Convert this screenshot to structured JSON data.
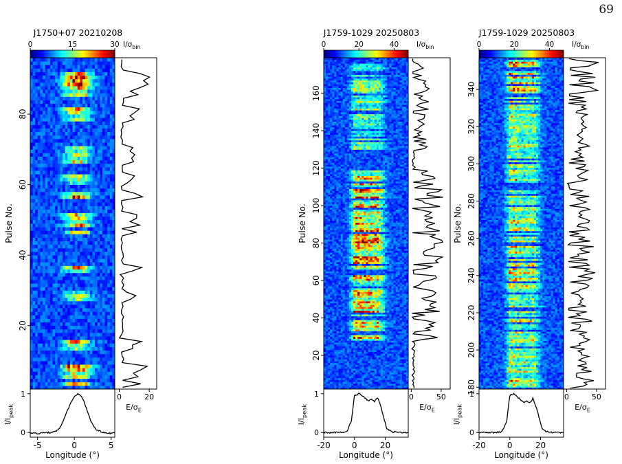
{
  "page_number": "69",
  "chart_data": [
    {
      "type": "heatmap",
      "title": "J1750+07  20210208",
      "colorbar": {
        "label": "I/σ_bin",
        "label_main": "I/σ",
        "label_sub": "bin",
        "ticks": [
          0,
          15,
          30
        ],
        "range": [
          0,
          30
        ],
        "colormap": "jet"
      },
      "pulse_axis": {
        "label": "Pulse No.",
        "range": [
          2,
          96
        ],
        "ticks": [
          20,
          40,
          60,
          80
        ]
      },
      "longitude_axis": {
        "label": "Longitude (°)",
        "range": [
          -6,
          5.5
        ],
        "ticks": [
          -5,
          0,
          5
        ]
      },
      "energy_axis": {
        "label": "E/σ_E",
        "label_main": "E/σ",
        "label_sub": "E",
        "range": [
          -3,
          25
        ],
        "ticks": [
          0,
          20
        ]
      },
      "profile_axis": {
        "label": "I/I_peak",
        "label_main": "I/I",
        "label_sub": "peak",
        "range": [
          -0.12,
          1.12
        ],
        "ticks": [
          0,
          1
        ]
      },
      "emission_bursts": [
        {
          "pulses": [
            3,
            9
          ],
          "intensity": 24
        },
        {
          "pulses": [
            13,
            16
          ],
          "intensity": 15
        },
        {
          "pulses": [
            27,
            29
          ],
          "intensity": 10
        },
        {
          "pulses": [
            35,
            36
          ],
          "intensity": 14
        },
        {
          "pulses": [
            46,
            51
          ],
          "intensity": 12
        },
        {
          "pulses": [
            56,
            57
          ],
          "intensity": 15
        },
        {
          "pulses": [
            60,
            62
          ],
          "intensity": 12
        },
        {
          "pulses": [
            66,
            70
          ],
          "intensity": 14
        },
        {
          "pulses": [
            77,
            81
          ],
          "intensity": 13
        },
        {
          "pulses": [
            85,
            91
          ],
          "intensity": 22
        }
      ],
      "integrated_profile": {
        "longitude": [
          -6,
          -5,
          -4,
          -3,
          -2.5,
          -2,
          -1.5,
          -1,
          -0.5,
          0,
          0.5,
          1,
          1.5,
          2,
          2.5,
          3,
          4,
          5,
          5.5
        ],
        "intensity": [
          0.0,
          -0.03,
          0.0,
          0.0,
          0.03,
          0.12,
          0.3,
          0.55,
          0.75,
          0.92,
          1.0,
          0.93,
          0.7,
          0.42,
          0.2,
          0.07,
          0.0,
          -0.02,
          0.0
        ]
      }
    },
    {
      "type": "heatmap",
      "title": "J1759-1029  20250803",
      "colorbar": {
        "label": "I/σ_bin",
        "label_main": "I/σ",
        "label_sub": "bin",
        "ticks": [
          0,
          20,
          40
        ],
        "range": [
          0,
          48
        ],
        "colormap": "jet"
      },
      "pulse_axis": {
        "label": "Pulse No.",
        "range": [
          2,
          179
        ],
        "ticks": [
          20,
          40,
          60,
          80,
          100,
          120,
          140,
          160
        ]
      },
      "longitude_axis": {
        "label": "Longitude (°)",
        "range": [
          -20,
          35
        ],
        "ticks": [
          -20,
          0,
          20
        ]
      },
      "energy_axis": {
        "label": "E/σ_E",
        "label_main": "E/σ",
        "label_sub": "E",
        "range": [
          -5,
          65
        ],
        "ticks": [
          0,
          50
        ]
      },
      "profile_axis": {
        "label": "I/I_peak",
        "label_main": "I/I",
        "label_sub": "peak",
        "range": [
          -0.12,
          1.12
        ],
        "ticks": [
          0,
          1
        ]
      },
      "emission_bursts": [
        {
          "pulses": [
            26,
            62
          ],
          "intensity": 22
        },
        {
          "pulses": [
            66,
            118
          ],
          "intensity": 25
        },
        {
          "pulses": [
            130,
            148
          ],
          "intensity": 12
        },
        {
          "pulses": [
            151,
            175
          ],
          "intensity": 15
        }
      ],
      "integrated_profile": {
        "longitude": [
          -20,
          -10,
          -5,
          -2,
          0,
          3,
          6,
          9,
          11,
          13,
          15,
          17,
          19,
          21,
          24,
          30,
          35
        ],
        "intensity": [
          0.0,
          0.0,
          0.02,
          0.3,
          0.95,
          1.0,
          0.92,
          0.82,
          0.85,
          0.8,
          0.9,
          0.7,
          0.4,
          0.1,
          0.02,
          0.0,
          0.0
        ]
      }
    },
    {
      "type": "heatmap",
      "title": "J1759-1029  20250803",
      "colorbar": {
        "label": "I/σ_bin",
        "label_main": "I/σ",
        "label_sub": "bin",
        "ticks": [
          0,
          20,
          40
        ],
        "range": [
          0,
          48
        ],
        "colormap": "jet"
      },
      "pulse_axis": {
        "label": "Pulse No.",
        "range": [
          179,
          357
        ],
        "ticks": [
          180,
          200,
          220,
          240,
          260,
          280,
          300,
          320,
          340
        ]
      },
      "longitude_axis": {
        "label": "Longitude (°)",
        "range": [
          -20,
          35
        ],
        "ticks": [
          -20,
          0,
          20
        ]
      },
      "energy_axis": {
        "label": "E/σ_E",
        "label_main": "E/σ",
        "label_sub": "E",
        "range": [
          -5,
          65
        ],
        "ticks": [
          0,
          50
        ]
      },
      "profile_axis": {
        "label": "I/I_peak",
        "label_main": "I/I",
        "label_sub": "peak",
        "range": [
          -0.12,
          1.12
        ],
        "ticks": [
          0,
          1
        ]
      },
      "emission_bursts": [
        {
          "pulses": [
            180,
            255
          ],
          "intensity": 20
        },
        {
          "pulses": [
            258,
            285
          ],
          "intensity": 20
        },
        {
          "pulses": [
            290,
            335
          ],
          "intensity": 17
        },
        {
          "pulses": [
            338,
            355
          ],
          "intensity": 22
        }
      ],
      "integrated_profile": {
        "longitude": [
          -20,
          -10,
          -5,
          -2,
          0,
          3,
          6,
          9,
          11,
          13,
          15,
          17,
          19,
          21,
          24,
          30,
          35
        ],
        "intensity": [
          0.0,
          0.0,
          0.02,
          0.3,
          0.95,
          1.0,
          0.88,
          0.78,
          0.8,
          0.76,
          0.88,
          0.68,
          0.4,
          0.1,
          0.02,
          0.0,
          0.0
        ]
      }
    }
  ]
}
